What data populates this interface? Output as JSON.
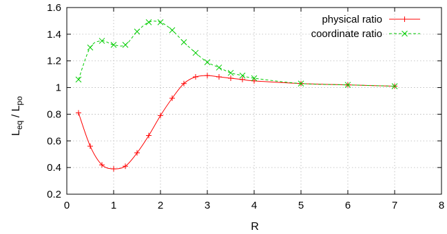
{
  "chart_data": {
    "type": "line",
    "xlabel": "R",
    "ylabel": {
      "base": "L",
      "sub1": "eq",
      "sep": " / L",
      "sub2": "po"
    },
    "xlim": [
      0,
      8
    ],
    "ylim": [
      0.2,
      1.6
    ],
    "xticks": [
      "0",
      "1",
      "2",
      "3",
      "4",
      "5",
      "6",
      "7",
      "8"
    ],
    "yticks": [
      "0.2",
      "0.4",
      "0.6",
      "0.8",
      "1",
      "1.2",
      "1.4",
      "1.6"
    ],
    "grid": true,
    "legend_position": "top-right",
    "series": [
      {
        "name": "physical ratio",
        "color": "#ff0000",
        "marker": "plus",
        "line_style": "solid",
        "x": [
          0.25,
          0.5,
          0.75,
          1.0,
          1.25,
          1.5,
          1.75,
          2.0,
          2.25,
          2.5,
          2.75,
          3.0,
          3.25,
          3.5,
          3.75,
          4.0,
          5.0,
          6.0,
          7.0
        ],
        "y": [
          0.81,
          0.56,
          0.42,
          0.39,
          0.41,
          0.51,
          0.64,
          0.79,
          0.92,
          1.03,
          1.08,
          1.09,
          1.08,
          1.07,
          1.06,
          1.05,
          1.03,
          1.02,
          1.01
        ]
      },
      {
        "name": "coordinate ratio",
        "color": "#00cc00",
        "marker": "cross",
        "line_style": "dashed",
        "x": [
          0.25,
          0.5,
          0.75,
          1.0,
          1.25,
          1.5,
          1.75,
          2.0,
          2.25,
          2.5,
          2.75,
          3.0,
          3.25,
          3.5,
          3.75,
          4.0,
          5.0,
          6.0,
          7.0
        ],
        "y": [
          1.06,
          1.3,
          1.35,
          1.32,
          1.32,
          1.42,
          1.49,
          1.49,
          1.43,
          1.34,
          1.26,
          1.19,
          1.15,
          1.11,
          1.09,
          1.07,
          1.03,
          1.02,
          1.01
        ]
      }
    ]
  }
}
